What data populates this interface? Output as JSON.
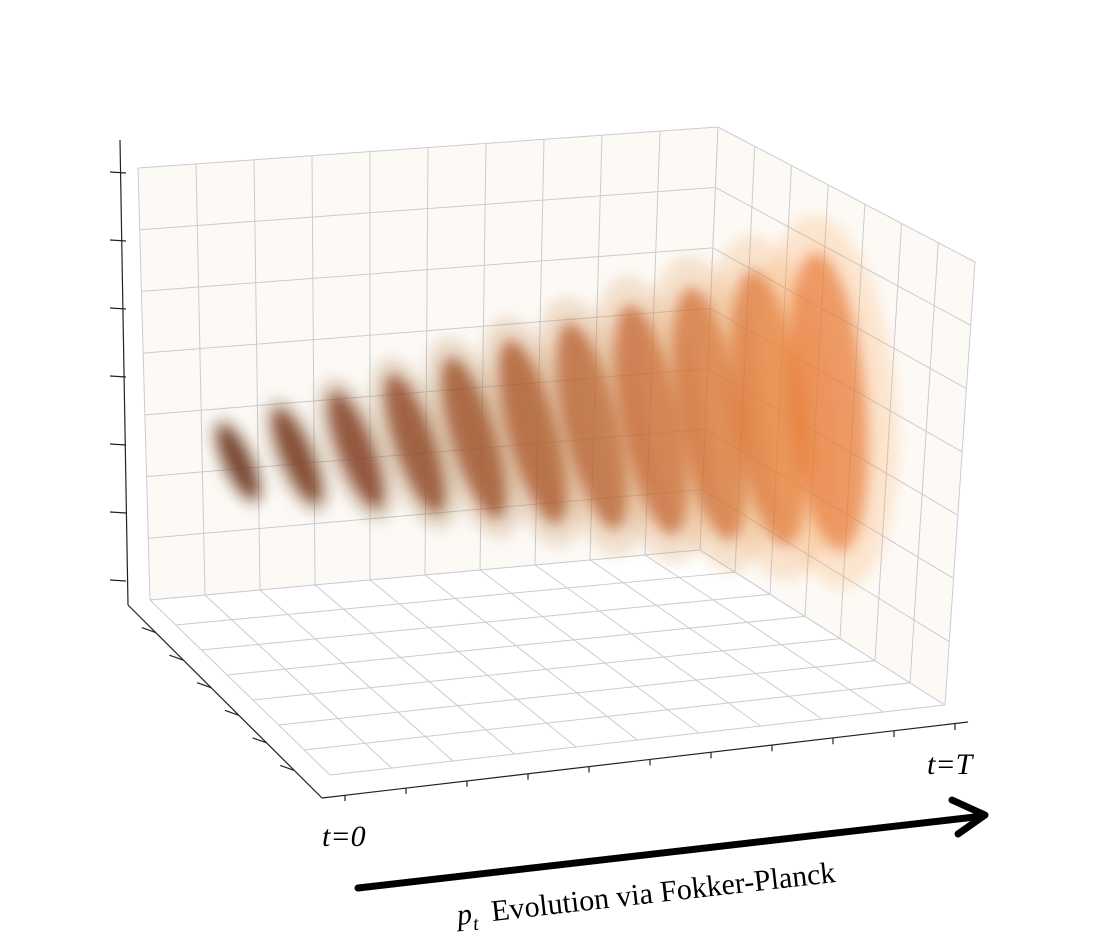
{
  "labels": {
    "start": "t=0",
    "end": "t=T"
  },
  "caption": {
    "symbol": "p",
    "subscript": "t",
    "text": "Evolution via Fokker-Planck"
  }
}
